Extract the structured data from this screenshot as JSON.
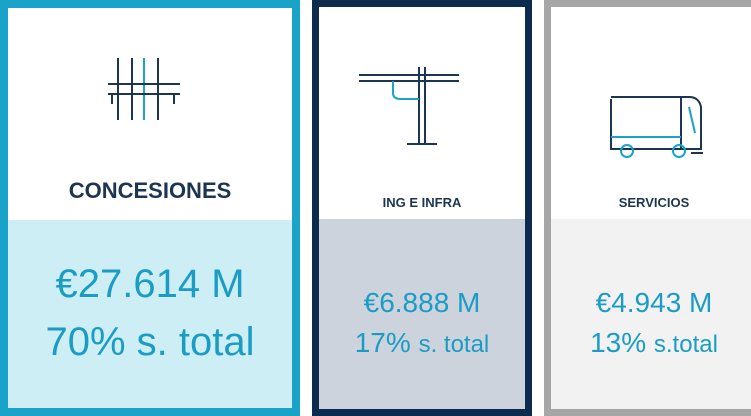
{
  "cards": [
    {
      "title": "CONCESIONES",
      "amount": "€27.614 M",
      "percent": "70%",
      "suffix": "s. total"
    },
    {
      "title": "ING E INFRA",
      "amount": "€6.888 M",
      "percent": "17%",
      "suffix": "s. total"
    },
    {
      "title": "SERVICIOS",
      "amount": "€4.943 M",
      "percent": "13%",
      "suffix": "s.total"
    }
  ]
}
